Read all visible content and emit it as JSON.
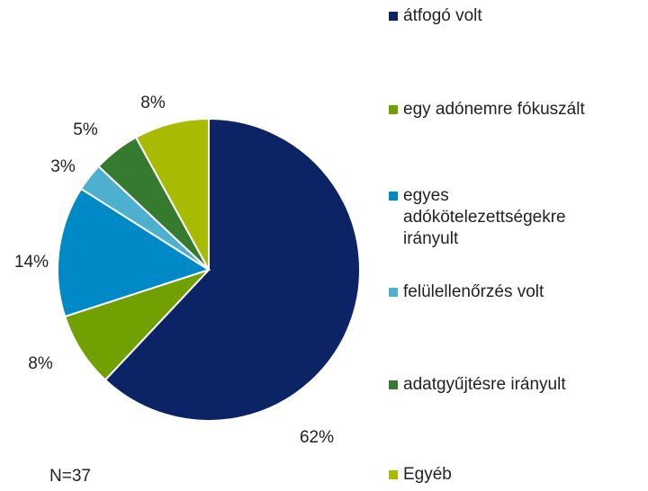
{
  "chart_data": {
    "type": "pie",
    "categories": [
      "átfogó volt",
      "egy adónemre fókuszált",
      "egyes adókötelezettségekre irányult",
      "felülellenőrzés volt",
      "adatgyűjtésre irányult",
      "Egyéb"
    ],
    "values": [
      62,
      8,
      14,
      3,
      5,
      8
    ],
    "value_labels": [
      "62%",
      "8%",
      "14%",
      "3%",
      "5%",
      "8%"
    ],
    "colors": [
      "#0c2466",
      "#70a100",
      "#0089c7",
      "#4eb0cf",
      "#357a2e",
      "#a9bb00"
    ],
    "note": "N=37"
  }
}
